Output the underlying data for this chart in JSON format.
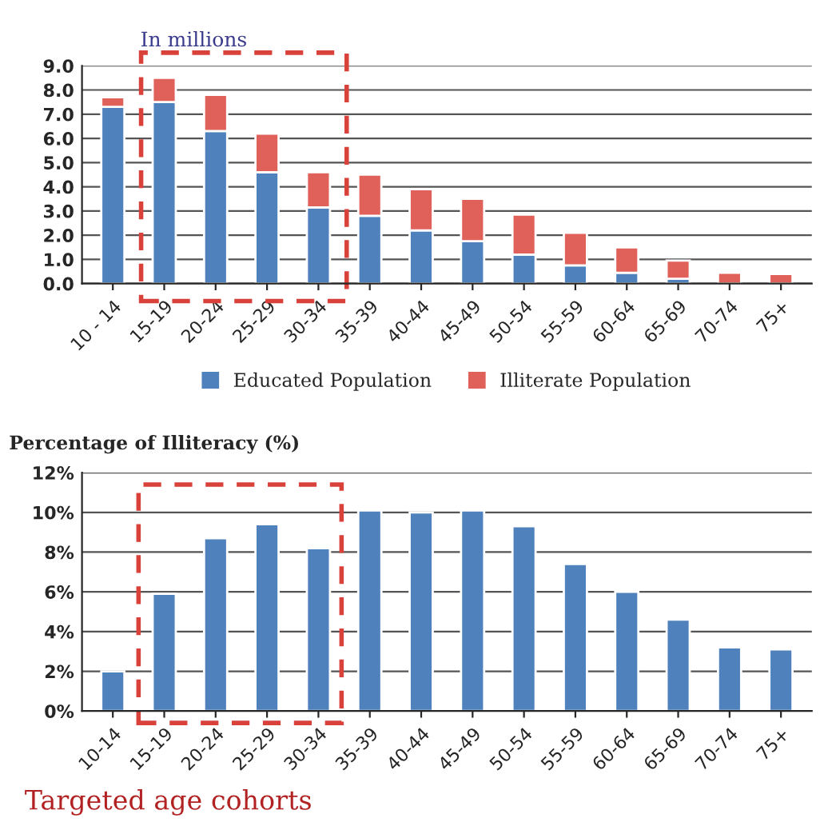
{
  "chart_data": [
    {
      "type": "bar",
      "title": "In millions",
      "stacked": true,
      "categories": [
        "10 - 14",
        "15-19",
        "20-24",
        "25-29",
        "30-34",
        "35-39",
        "40-44",
        "45-49",
        "50-54",
        "55-59",
        "60-64",
        "65-69",
        "70-74",
        "75+"
      ],
      "series": [
        {
          "name": "Educated Population",
          "color": "#4f81bd",
          "values": [
            7.3,
            7.5,
            6.3,
            4.6,
            3.15,
            2.8,
            2.2,
            1.75,
            1.2,
            0.75,
            0.45,
            0.2,
            null,
            null
          ]
        },
        {
          "name": "Illiterate Population",
          "color": "#e0605a",
          "values": [
            0.4,
            1.0,
            1.5,
            1.6,
            1.45,
            1.7,
            1.7,
            1.75,
            1.65,
            1.35,
            1.05,
            0.75,
            0.45,
            0.4
          ]
        }
      ],
      "ylim": [
        0,
        9
      ],
      "yticks": [
        {
          "value": 0,
          "label": "0.0"
        },
        {
          "value": 1,
          "label": "1.0"
        },
        {
          "value": 2,
          "label": "2.0"
        },
        {
          "value": 3,
          "label": "3.0"
        },
        {
          "value": 4,
          "label": "4.0"
        },
        {
          "value": 5,
          "label": "5.0"
        },
        {
          "value": 6,
          "label": "6.0"
        },
        {
          "value": 7,
          "label": "7.0"
        },
        {
          "value": 8,
          "label": "8.0"
        },
        {
          "value": 9,
          "label": "9.0"
        }
      ],
      "grid": "y",
      "legend": "bottom"
    },
    {
      "type": "bar",
      "title": "Percentage of Illiteracy (%)",
      "categories": [
        "10-14",
        "15-19",
        "20-24",
        "25-29",
        "30-34",
        "35-39",
        "40-44",
        "45-49",
        "50-54",
        "55-59",
        "60-64",
        "65-69",
        "70-74",
        "75+"
      ],
      "series": [
        {
          "color": "#4f81bd",
          "values": [
            2.0,
            5.9,
            8.7,
            9.4,
            8.2,
            10.1,
            10.0,
            10.1,
            9.3,
            7.4,
            6.0,
            4.6,
            3.2,
            3.1
          ]
        }
      ],
      "ylim": [
        0,
        12
      ],
      "yticks": [
        {
          "value": 0,
          "label": "0%"
        },
        {
          "value": 2,
          "label": "2%"
        },
        {
          "value": 4,
          "label": "4%"
        },
        {
          "value": 6,
          "label": "6%"
        },
        {
          "value": 8,
          "label": "8%"
        },
        {
          "value": 10,
          "label": "10%"
        },
        {
          "value": 12,
          "label": "12%"
        }
      ],
      "grid": "y",
      "annotations": [
        "Targeted age cohorts"
      ]
    }
  ]
}
